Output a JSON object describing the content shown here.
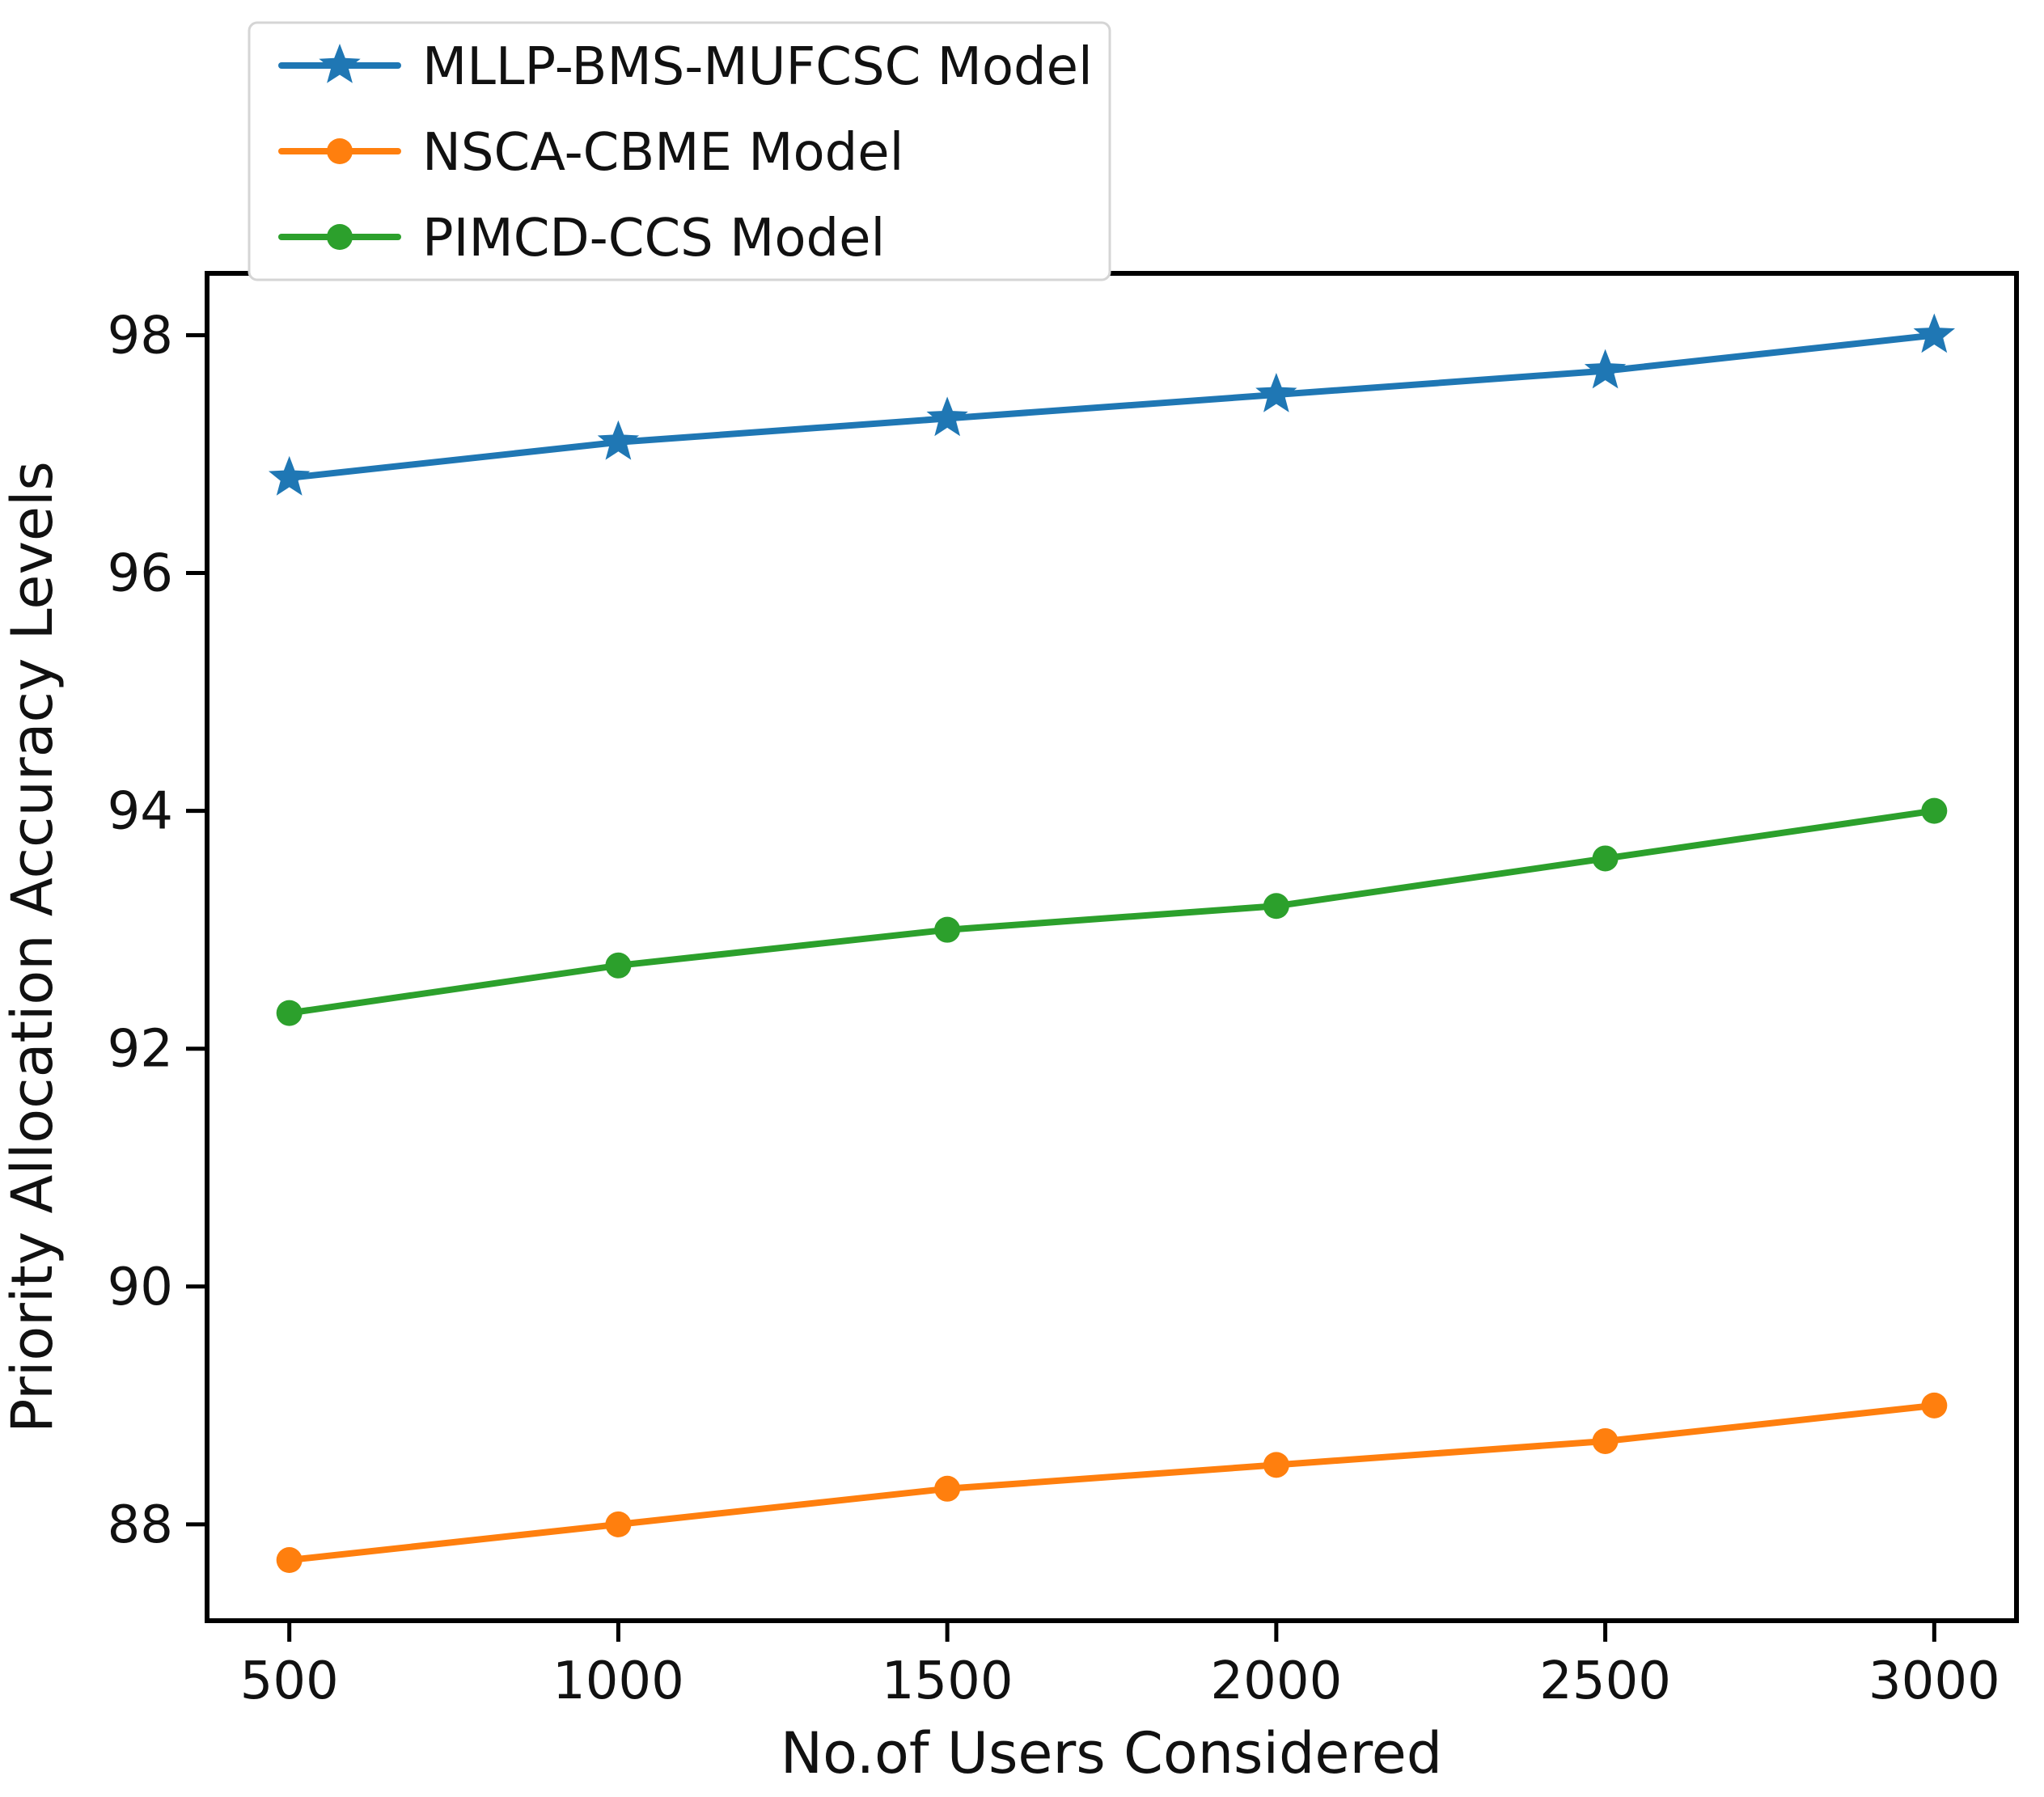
{
  "figure": {
    "background": "#ffffff",
    "axis_color": "#000000",
    "text_color": "#111111",
    "legend_border_color": "#d5d5d5",
    "legend_background": "#ffffff"
  },
  "chart_data": {
    "type": "line",
    "title": "",
    "xlabel": "No.of Users Considered",
    "ylabel": "Priority Allocation Accuracy Levels",
    "x": [
      500,
      1000,
      1500,
      2000,
      2500,
      3000
    ],
    "x_tick_labels": [
      "500",
      "1000",
      "1500",
      "2000",
      "2500",
      "3000"
    ],
    "y_ticks": [
      88,
      90,
      92,
      94,
      96,
      98
    ],
    "y_tick_labels": [
      "88",
      "90",
      "92",
      "94",
      "96",
      "98"
    ],
    "xlim": [
      375,
      3125
    ],
    "ylim": [
      87.19,
      98.52
    ],
    "grid": false,
    "legend_position": "upper-left",
    "series": [
      {
        "name": "MLLP-BMS-MUFCSC Model",
        "color": "#1f77b4",
        "marker": "star",
        "values": [
          96.8,
          97.1,
          97.3,
          97.5,
          97.7,
          98.0
        ]
      },
      {
        "name": "NSCA-CBME Model",
        "color": "#ff7f0e",
        "marker": "circle",
        "values": [
          87.7,
          88.0,
          88.3,
          88.5,
          88.7,
          89.0
        ]
      },
      {
        "name": "PIMCD-CCS Model",
        "color": "#2ca02c",
        "marker": "circle",
        "values": [
          92.3,
          92.7,
          93.0,
          93.2,
          93.6,
          94.0
        ]
      }
    ]
  }
}
